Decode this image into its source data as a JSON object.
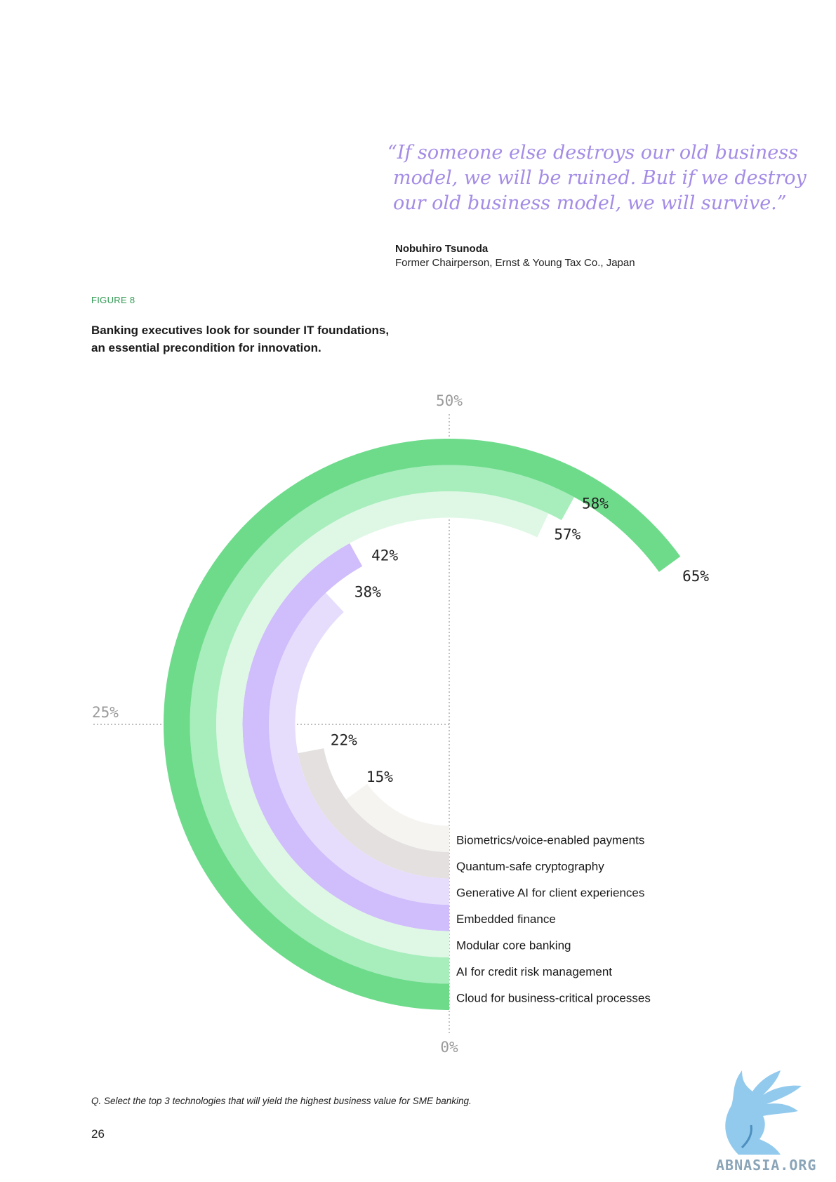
{
  "quote": {
    "lines": [
      "“If someone else destroys our old business",
      "model, we will be ruined. But if we destroy",
      "our old business model, we will survive.”"
    ],
    "author": "Nobuhiro Tsunoda",
    "role": "Former Chairperson, Ernst & Young Tax Co., Japan"
  },
  "figure": {
    "label": "FIGURE 8",
    "title_lines": [
      "Banking executives look for sounder IT foundations,",
      "an essential precondition for innovation."
    ],
    "note": "Q. Select the top 3 technologies that will yield the highest business value for SME banking."
  },
  "chart_data": {
    "type": "radial-bar",
    "value_range": [
      0,
      100
    ],
    "reference_ticks": [
      "0%",
      "25%",
      "50%"
    ],
    "series": [
      {
        "name": "Biometrics/voice-enabled payments",
        "value": 15,
        "label": "15%",
        "color": "#f5f4f1"
      },
      {
        "name": "Quantum-safe cryptography",
        "value": 22,
        "label": "22%",
        "color": "#e3e0df"
      },
      {
        "name": "Generative AI for client experiences",
        "value": 38,
        "label": "38%",
        "color": "#e6ddfd"
      },
      {
        "name": "Embedded finance",
        "value": 42,
        "label": "42%",
        "color": "#d0bdfb"
      },
      {
        "name": "Modular core banking",
        "value": 57,
        "label": "57%",
        "color": "#dff8e5"
      },
      {
        "name": "AI for credit risk management",
        "value": 58,
        "label": "58%",
        "color": "#a7eebc"
      },
      {
        "name": "Cloud for business-critical processes",
        "value": 65,
        "label": "65%",
        "color": "#6edb8b"
      }
    ]
  },
  "page_number": "26",
  "watermark": {
    "text": "ABNASIA.ORG",
    "icon": "griffin-logo-icon",
    "color": "#7fc1ea"
  }
}
